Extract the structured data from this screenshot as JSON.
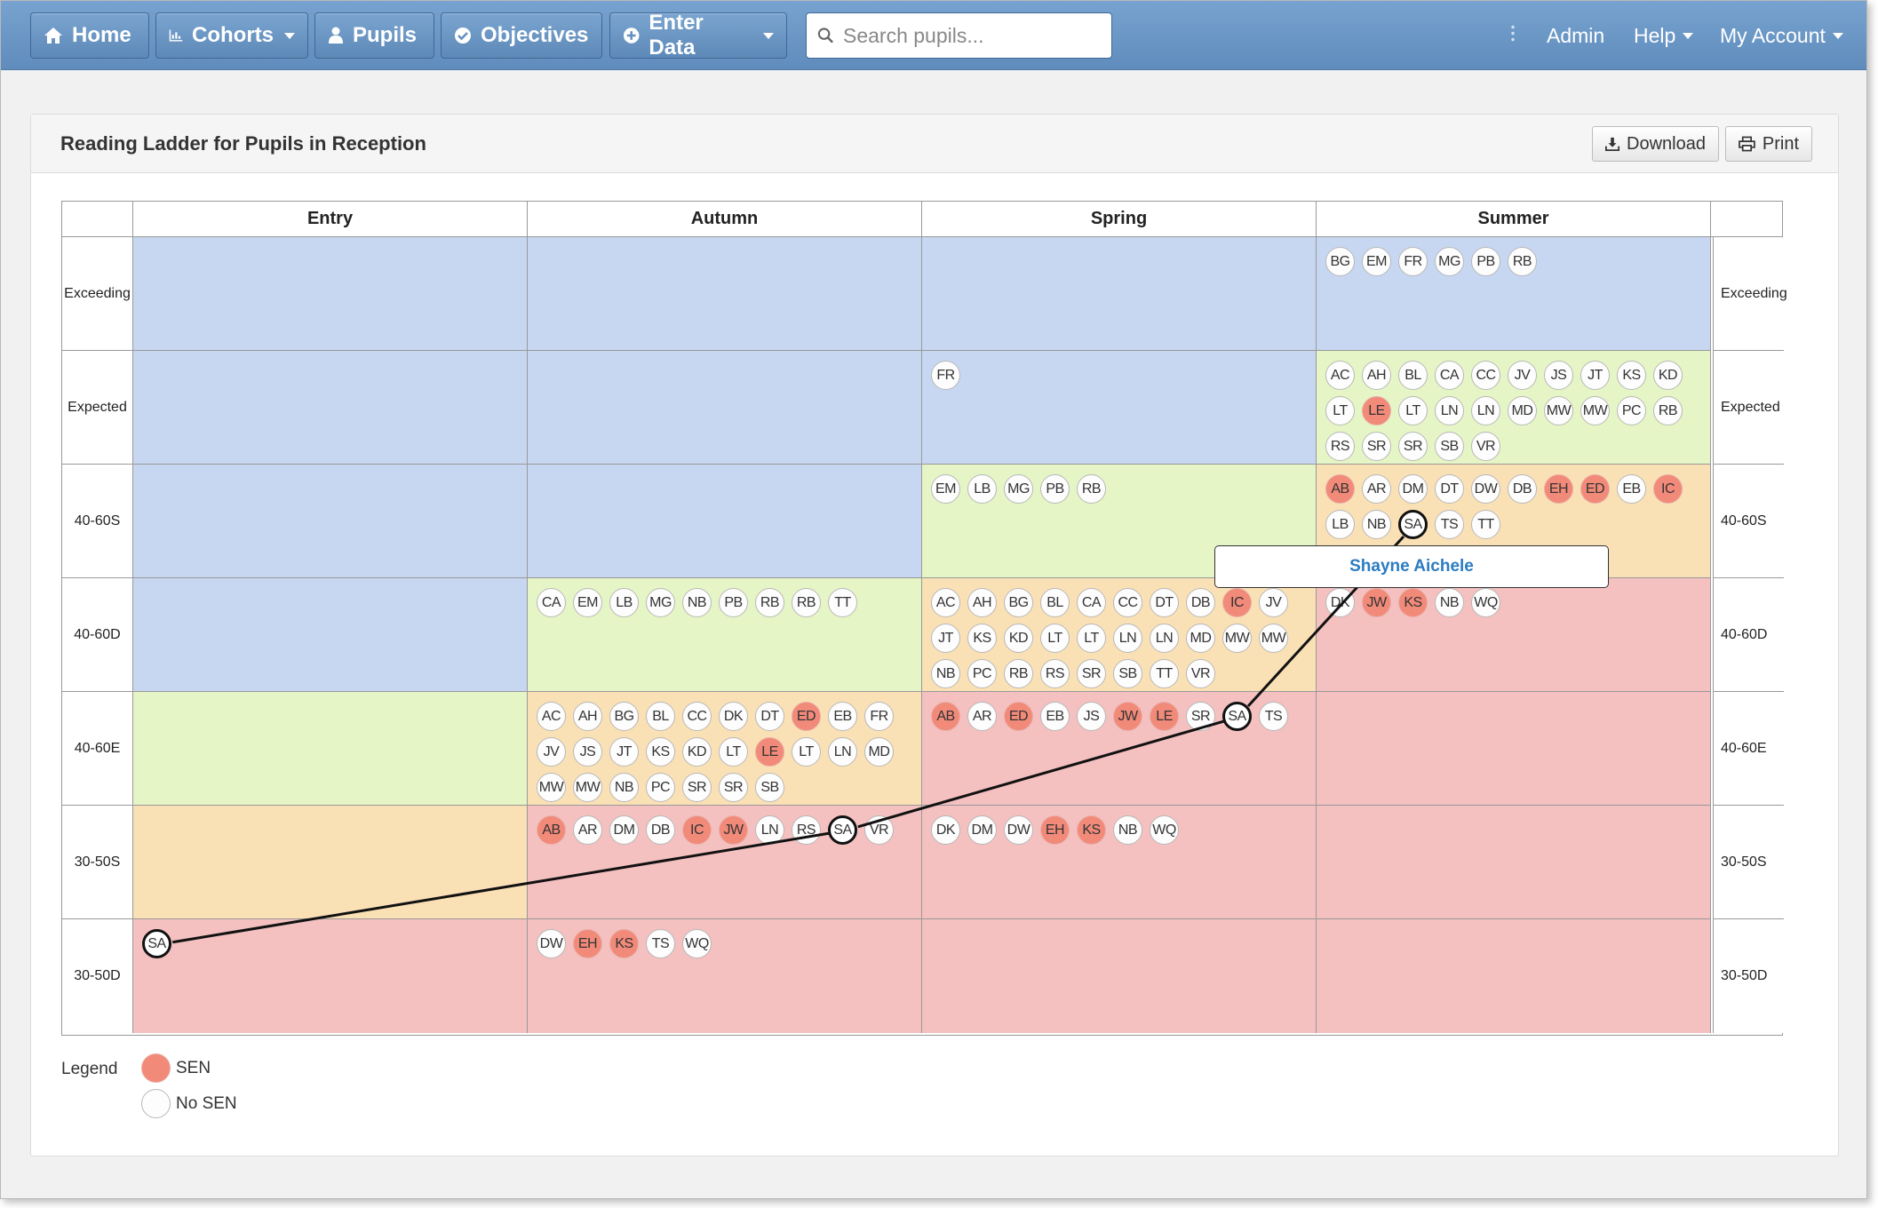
{
  "nav": {
    "home": "Home",
    "cohorts": "Cohorts",
    "pupils": "Pupils",
    "objectives": "Objectives",
    "enter_data": "Enter Data",
    "search_placeholder": "Search pupils...",
    "admin": "Admin",
    "help": "Help",
    "account": "My Account"
  },
  "panel": {
    "title": "Reading Ladder for Pupils in Reception",
    "download": "Download",
    "print": "Print"
  },
  "ladder": {
    "terms": [
      "Entry",
      "Autumn",
      "Spring",
      "Summer"
    ],
    "bands": [
      "Exceeding",
      "Expected",
      "40-60S",
      "40-60D",
      "40-60E",
      "30-50S",
      "30-50D"
    ],
    "band_colors": {
      "blue": "#c7d7f1",
      "green": "#e6f5c5",
      "orange": "#fae0b5",
      "red": "#f4c0c0"
    },
    "cell_colors": [
      [
        "blue",
        "blue",
        "blue",
        "blue"
      ],
      [
        "blue",
        "blue",
        "blue",
        "green"
      ],
      [
        "blue",
        "blue",
        "green",
        "orange"
      ],
      [
        "blue",
        "green",
        "orange",
        "red"
      ],
      [
        "green",
        "orange",
        "red",
        "red"
      ],
      [
        "orange",
        "red",
        "red",
        "red"
      ],
      [
        "red",
        "red",
        "red",
        "red"
      ]
    ],
    "cells": [
      [
        [],
        [],
        [],
        [
          "BG",
          "EM",
          "FR",
          "MG",
          "PB",
          "RB"
        ]
      ],
      [
        [],
        [],
        [
          "FR"
        ],
        [
          "AC",
          "AH",
          "BL",
          "CA",
          "CC",
          "JV",
          "JS",
          "JT",
          "KS",
          "KD",
          "LT",
          "LE*",
          "LT",
          "LN",
          "LN",
          "MD",
          "MW",
          "MW",
          "PC",
          "RB",
          "RS",
          "SR",
          "SR",
          "SB",
          "VR"
        ]
      ],
      [
        [],
        [],
        [
          "EM",
          "LB",
          "MG",
          "PB",
          "RB"
        ],
        [
          "AB*",
          "AR",
          "DM",
          "DT",
          "DW",
          "DB",
          "EH*",
          "ED*",
          "EB",
          "IC*",
          "LB",
          "NB",
          "SA!",
          "TS",
          "TT"
        ]
      ],
      [
        [],
        [
          "CA",
          "EM",
          "LB",
          "MG",
          "NB",
          "PB",
          "RB",
          "RB",
          "TT"
        ],
        [
          "AC",
          "AH",
          "BG",
          "BL",
          "CA",
          "CC",
          "DT",
          "DB",
          "IC*",
          "JV",
          "JT",
          "KS",
          "KD",
          "LT",
          "LT",
          "LN",
          "LN",
          "MD",
          "MW",
          "MW",
          "NB",
          "PC",
          "RB",
          "RS",
          "SR",
          "SB",
          "TT",
          "VR"
        ],
        [
          "DK",
          "JW*",
          "KS*",
          "NB",
          "WQ"
        ]
      ],
      [
        [],
        [
          "AC",
          "AH",
          "BG",
          "BL",
          "CC",
          "DK",
          "DT",
          "ED*",
          "EB",
          "FR",
          "JV",
          "JS",
          "JT",
          "KS",
          "KD",
          "LT",
          "LE*",
          "LT",
          "LN",
          "MD",
          "MW",
          "MW",
          "NB",
          "PC",
          "SR",
          "SR",
          "SB"
        ],
        [
          "AB*",
          "AR",
          "ED*",
          "EB",
          "JS",
          "JW*",
          "LE*",
          "SR",
          "SA!",
          "TS"
        ],
        []
      ],
      [
        [],
        [
          "AB*",
          "AR",
          "DM",
          "DB",
          "IC*",
          "JW*",
          "LN",
          "RS",
          "SA!",
          "VR"
        ],
        [
          "DK",
          "DM",
          "DW",
          "EH*",
          "KS*",
          "NB",
          "WQ"
        ],
        []
      ],
      [
        [
          "SA!"
        ],
        [
          "DW",
          "EH*",
          "KS*",
          "TS",
          "WQ"
        ],
        [],
        []
      ]
    ],
    "tooltip": "Shayne Aichele"
  },
  "legend": {
    "title": "Legend",
    "sen": "SEN",
    "no_sen": "No SEN"
  }
}
